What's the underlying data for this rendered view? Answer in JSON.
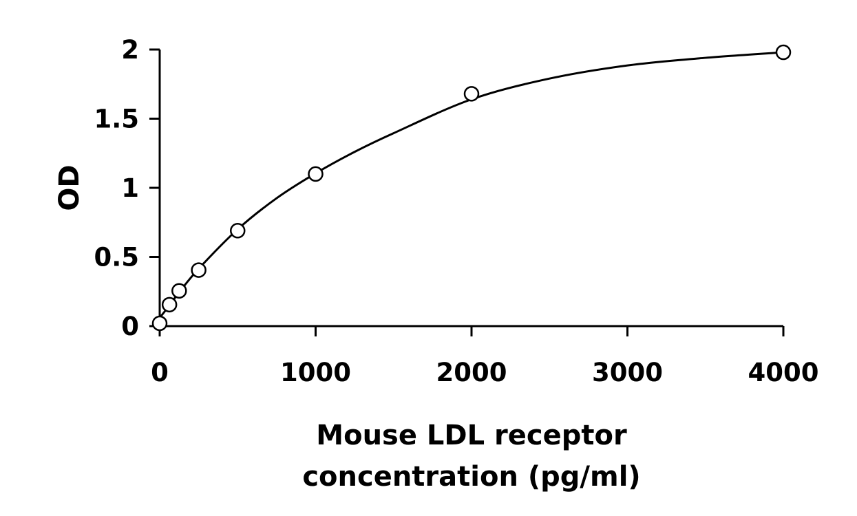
{
  "chart_data": {
    "type": "scatter",
    "title": "",
    "xlabel_lines": [
      "Mouse LDL receptor",
      "concentration (pg/ml)"
    ],
    "ylabel": "OD",
    "xlim": [
      0,
      4000
    ],
    "ylim": [
      0,
      2
    ],
    "x_ticks": [
      0,
      1000,
      2000,
      3000,
      4000
    ],
    "y_ticks": [
      0,
      0.5,
      1,
      1.5,
      2
    ],
    "x_tick_labels": [
      "0",
      "1000",
      "2000",
      "3000",
      "4000"
    ],
    "y_tick_labels": [
      "0",
      "0.5",
      "1",
      "1.5",
      "2"
    ],
    "grid": false,
    "series": [
      {
        "x": [
          0,
          62.5,
          125,
          250,
          500,
          1000,
          2000,
          4000
        ],
        "y": [
          0.02,
          0.155,
          0.255,
          0.405,
          0.69,
          1.1,
          1.68,
          1.98
        ]
      }
    ],
    "fit_curve": {
      "x": [
        0,
        62.5,
        125,
        250,
        500,
        750,
        1000,
        1250,
        1500,
        2000,
        2500,
        3000,
        3500,
        4000
      ],
      "y": [
        0.06,
        0.15,
        0.245,
        0.415,
        0.7,
        0.925,
        1.105,
        1.26,
        1.395,
        1.64,
        1.79,
        1.885,
        1.94,
        1.98
      ]
    }
  }
}
